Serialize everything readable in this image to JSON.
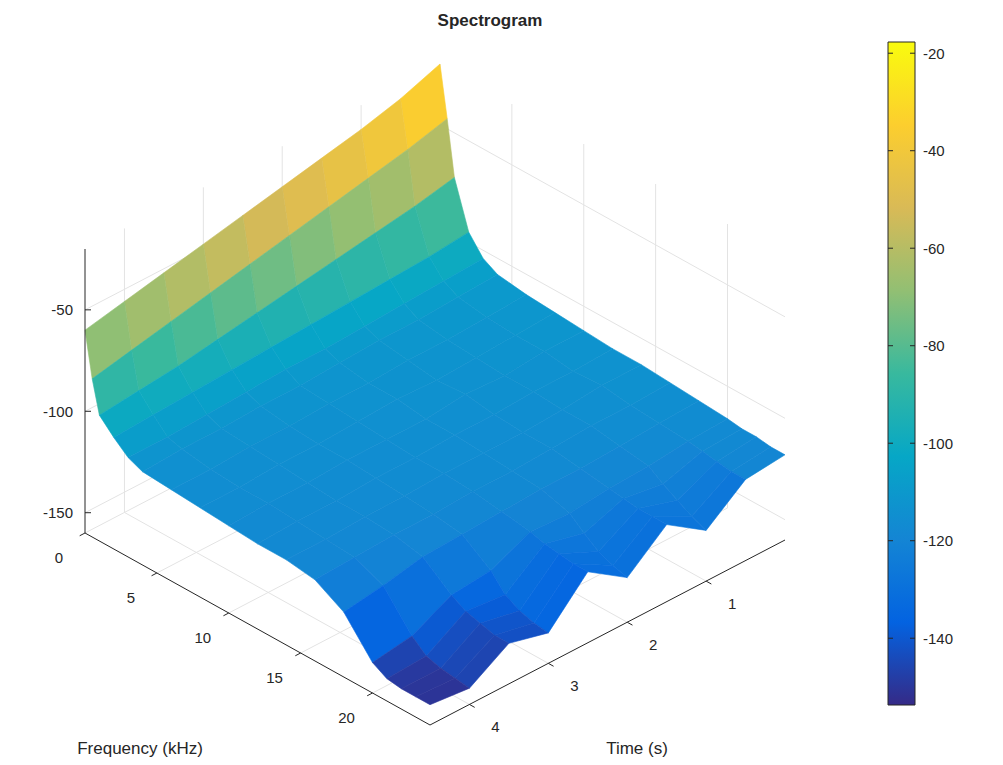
{
  "chart_data": {
    "type": "surface",
    "title": "Spectrogram",
    "xlabel": "Frequency (kHz)",
    "ylabel": "Time (s)",
    "x": [
      0,
      0.5,
      1,
      2,
      3,
      4,
      6,
      8,
      10,
      12,
      14,
      16,
      18,
      20,
      21,
      22,
      23,
      24
    ],
    "y": [
      0,
      0.5,
      1,
      1.5,
      2,
      2.5,
      3,
      3.5,
      4,
      4.5
    ],
    "z": [
      [
        -20,
        -45,
        -72,
        -95,
        -104,
        -108,
        -110,
        -111,
        -112,
        -113,
        -113,
        -114,
        -115,
        -116,
        -117,
        -117,
        -118,
        -118
      ],
      [
        -27,
        -50,
        -76,
        -97,
        -105,
        -109,
        -111,
        -112,
        -112,
        -114,
        -113,
        -115,
        -116,
        -117,
        -118,
        -119,
        -120,
        -120
      ],
      [
        -32,
        -54,
        -79,
        -98,
        -106,
        -110,
        -112,
        -113,
        -114,
        -114,
        -115,
        -115,
        -117,
        -119,
        -124,
        -128,
        -132,
        -135
      ],
      [
        -36,
        -58,
        -82,
        -99,
        -107,
        -110,
        -112,
        -114,
        -113,
        -115,
        -116,
        -116,
        -118,
        -120,
        -121,
        -122,
        -122,
        -122
      ],
      [
        -40,
        -62,
        -85,
        -100,
        -108,
        -111,
        -113,
        -113,
        -115,
        -115,
        -116,
        -117,
        -118,
        -122,
        -128,
        -133,
        -136,
        -138
      ],
      [
        -44,
        -66,
        -88,
        -101,
        -108,
        -112,
        -113,
        -114,
        -115,
        -116,
        -116,
        -117,
        -119,
        -121,
        -123,
        -124,
        -125,
        -125
      ],
      [
        -48,
        -70,
        -91,
        -102,
        -109,
        -112,
        -114,
        -115,
        -115,
        -116,
        -117,
        -118,
        -120,
        -130,
        -138,
        -142,
        -144,
        -145
      ],
      [
        -52,
        -74,
        -94,
        -103,
        -110,
        -113,
        -114,
        -115,
        -116,
        -117,
        -117,
        -118,
        -121,
        -132,
        -136,
        -138,
        -140,
        -140
      ],
      [
        -56,
        -78,
        -96,
        -104,
        -111,
        -113,
        -115,
        -116,
        -116,
        -117,
        -118,
        -119,
        -125,
        -142,
        -148,
        -150,
        -151,
        -152
      ],
      [
        -60,
        -82,
        -98,
        -105,
        -111,
        -114,
        -115,
        -116,
        -117,
        -118,
        -118,
        -120,
        -128,
        -145,
        -149,
        -150,
        -150,
        -150
      ]
    ],
    "xlim": [
      0,
      24
    ],
    "xticks": [
      0,
      5,
      10,
      15,
      20
    ],
    "ylim": [
      0,
      4.5
    ],
    "yticks": [
      1,
      2,
      3,
      4
    ],
    "zlim": [
      -160,
      -20
    ],
    "zticks": [
      -150,
      -100,
      -50
    ],
    "color_range": [
      -153.7,
      -17.7
    ],
    "color_ticks": [
      -20,
      -40,
      -60,
      -80,
      -100,
      -120,
      -140
    ],
    "grid": true
  }
}
